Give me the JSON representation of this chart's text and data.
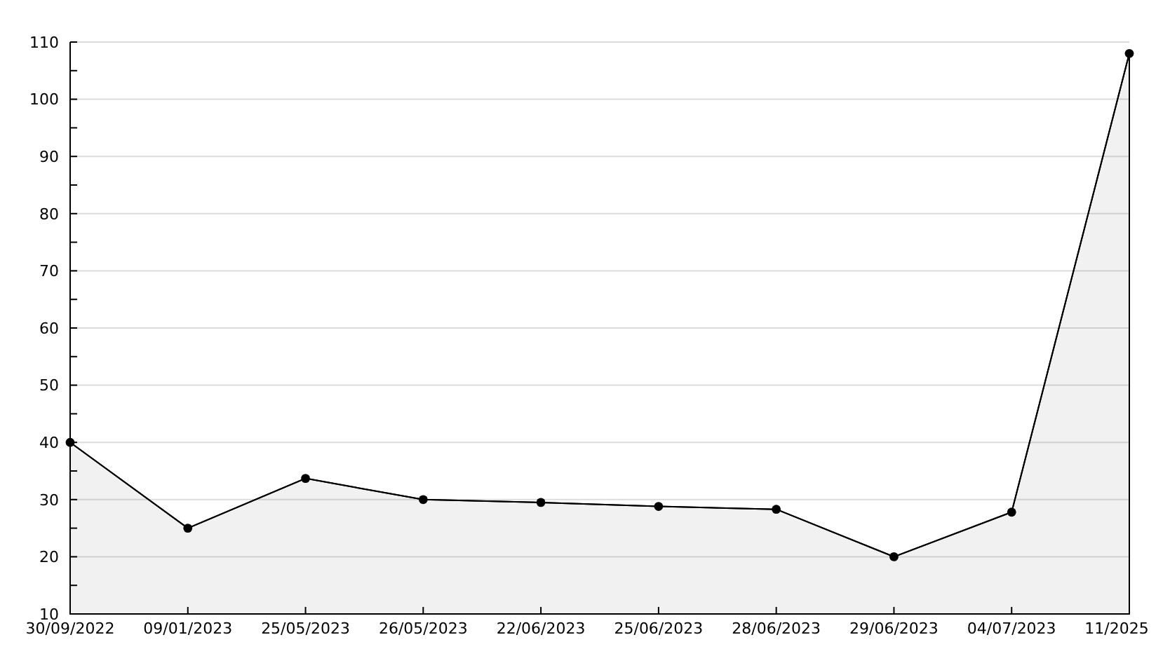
{
  "chart_data": {
    "type": "area",
    "categories": [
      "30/09/2022",
      "09/01/2023",
      "25/05/2023",
      "26/05/2023",
      "22/06/2023",
      "25/06/2023",
      "28/06/2023",
      "29/06/2023",
      "04/07/2023",
      "11/2025"
    ],
    "series": [
      {
        "color": "#000000",
        "values": [
          40,
          25,
          33.7,
          30,
          29.5,
          28.8,
          28.3,
          20,
          27.8,
          108
        ]
      }
    ],
    "ylim": [
      10,
      110
    ],
    "yticks": [
      10,
      {
        "value": 15,
        "label": null
      },
      20,
      {
        "value": 25,
        "label": null
      },
      30,
      {
        "value": 35,
        "label": null
      },
      40,
      {
        "value": 45,
        "label": null
      },
      50,
      {
        "value": 55,
        "label": null
      },
      60,
      {
        "value": 65,
        "label": null
      },
      70,
      {
        "value": 75,
        "label": null
      },
      80,
      {
        "value": 85,
        "label": null
      },
      90,
      {
        "value": 95,
        "label": null
      },
      100,
      {
        "value": 105,
        "label": null
      },
      110
    ],
    "grid": "y",
    "marker": "circle",
    "line_style": "solid"
  }
}
